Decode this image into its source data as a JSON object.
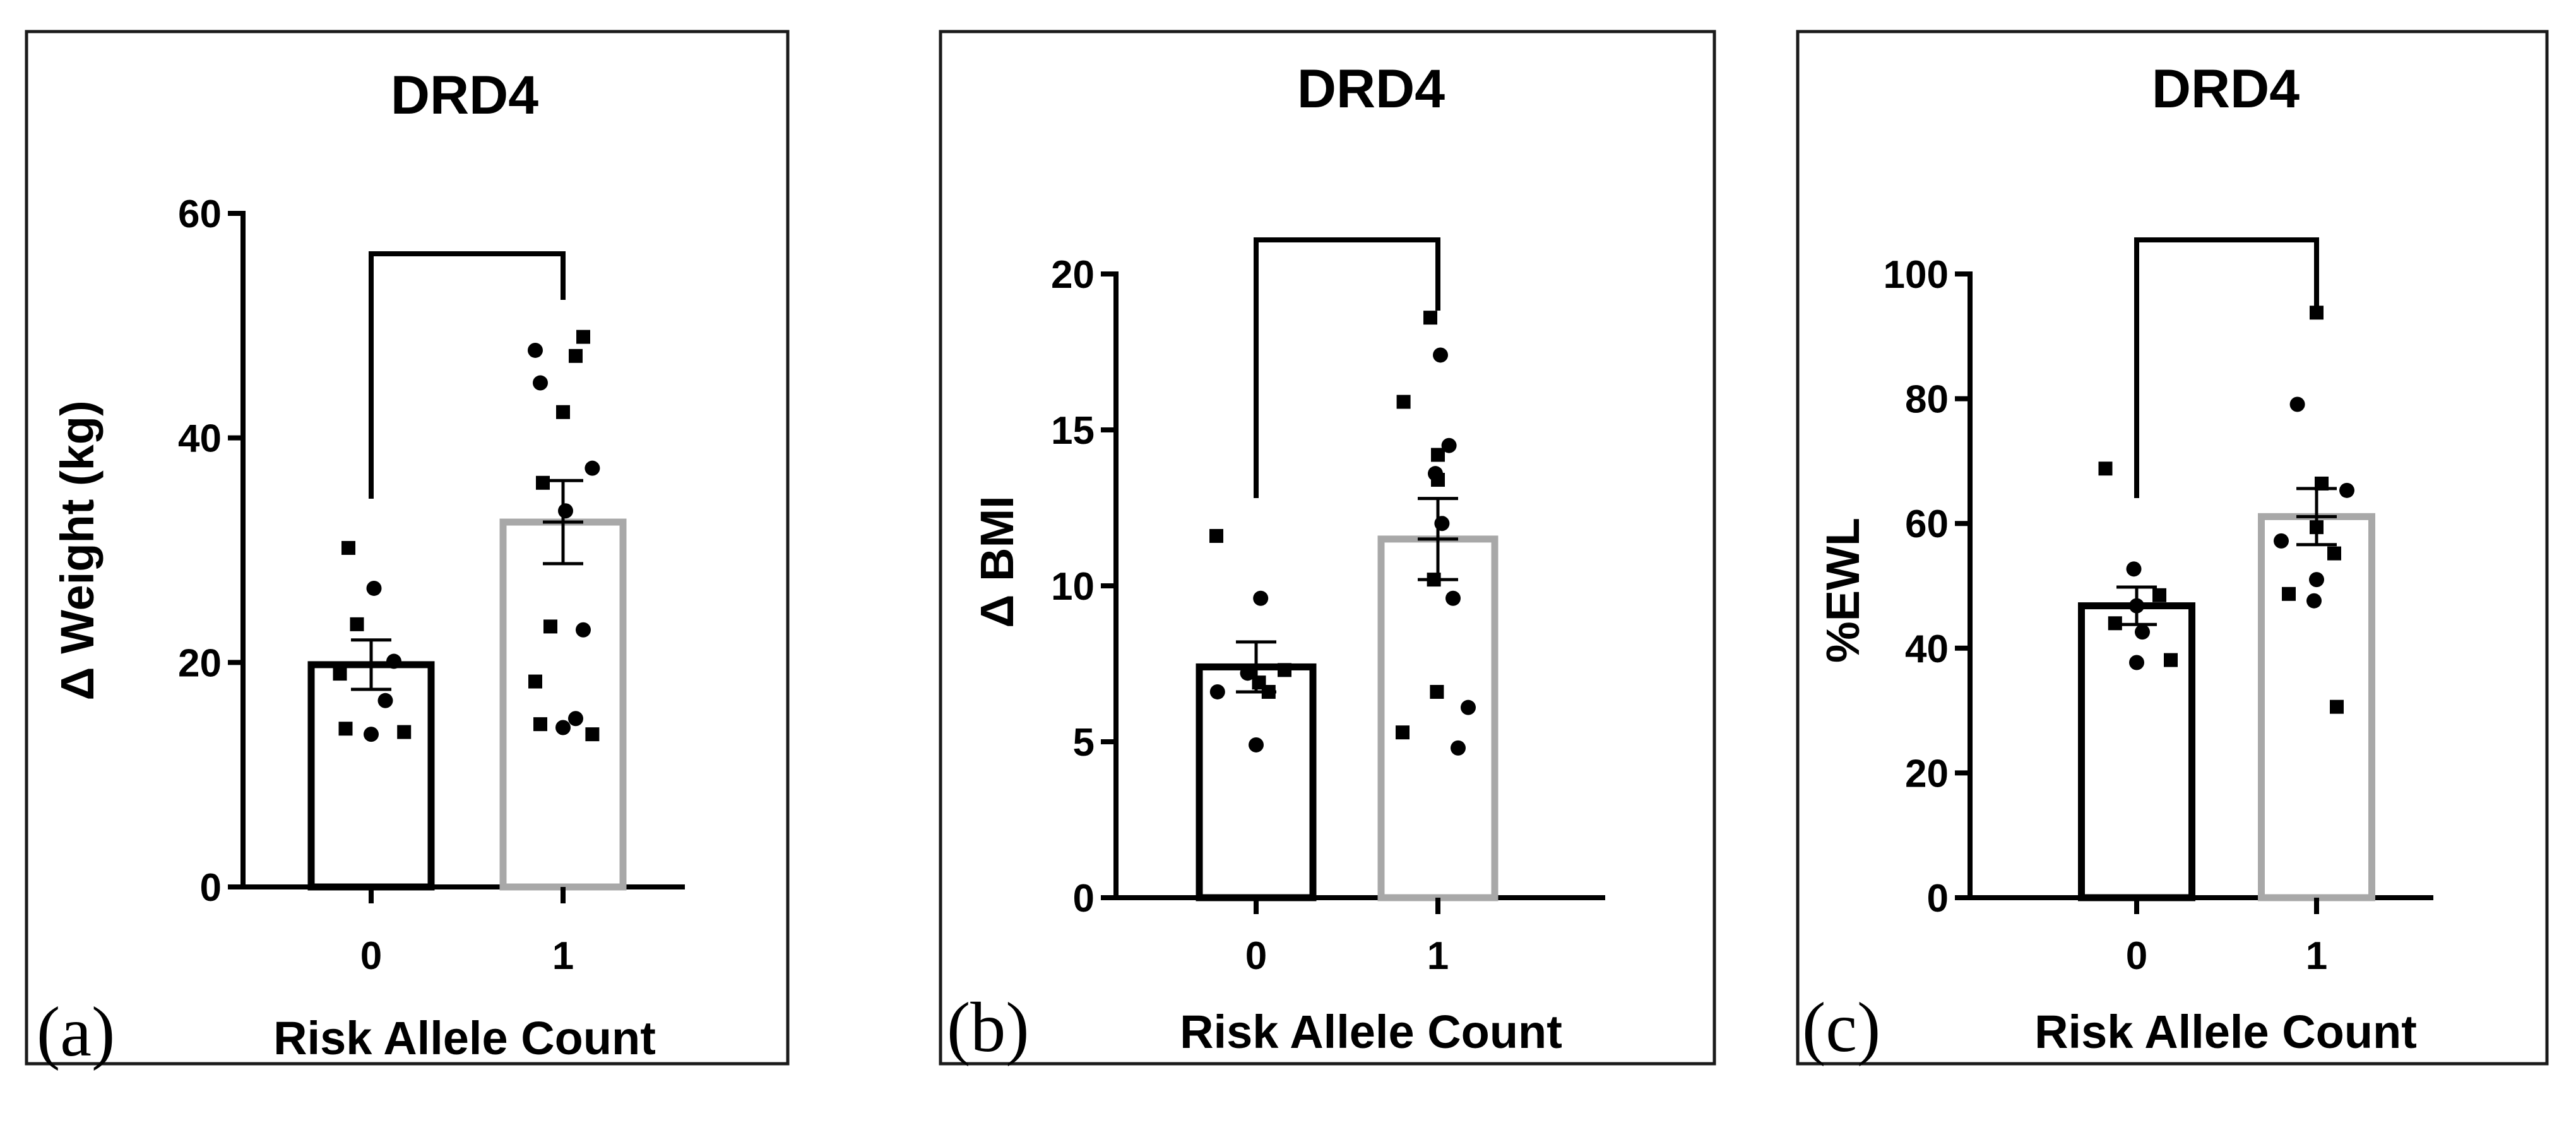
{
  "chart_data": [
    {
      "type": "bar",
      "panel_label": "(a)",
      "title": "DRD4",
      "xlabel": "Risk Allele Count",
      "ylabel": "Δ Weight (kg)",
      "ylim": [
        0,
        60
      ],
      "yticks": [
        "0",
        "20",
        "40",
        "60"
      ],
      "categories": [
        "0",
        "1"
      ],
      "bar_colors": [
        "#000000",
        "#a8a8a8"
      ],
      "values": [
        19.8,
        32.5
      ],
      "sem": [
        2.2,
        3.7
      ],
      "points": [
        [
          30.2,
          26.6,
          23.4,
          20.1,
          19.0,
          16.6,
          14.1,
          13.6,
          13.8
        ],
        [
          49.0,
          47.8,
          47.3,
          44.9,
          42.3,
          37.3,
          36.0,
          33.5,
          23.2,
          22.9,
          18.3,
          15.0,
          14.5,
          14.2,
          13.6
        ]
      ],
      "significance_bracket": true
    },
    {
      "type": "bar",
      "panel_label": "(b)",
      "title": "DRD4",
      "xlabel": "Risk Allele Count",
      "ylabel": "Δ BMI",
      "ylim": [
        0,
        20
      ],
      "yticks": [
        "0",
        "5",
        "10",
        "15",
        "20"
      ],
      "categories": [
        "0",
        "1"
      ],
      "bar_colors": [
        "#000000",
        "#a8a8a8"
      ],
      "values": [
        7.4,
        11.5
      ],
      "sem": [
        0.8,
        1.3
      ],
      "points": [
        [
          11.6,
          9.6,
          7.3,
          7.2,
          6.9,
          6.6,
          6.6,
          4.9
        ],
        [
          18.6,
          17.4,
          15.9,
          14.5,
          14.2,
          13.6,
          13.4,
          12.0,
          10.2,
          9.6,
          6.6,
          6.1,
          5.3,
          4.8
        ]
      ],
      "significance_bracket": true
    },
    {
      "type": "bar",
      "panel_label": "(c)",
      "title": "DRD4",
      "xlabel": "Risk Allele Count",
      "ylabel": "%EWL",
      "ylim": [
        0,
        100
      ],
      "yticks": [
        "0",
        "20",
        "40",
        "60",
        "80",
        "100"
      ],
      "categories": [
        "0",
        "1"
      ],
      "bar_colors": [
        "#000000",
        "#a8a8a8"
      ],
      "values": [
        46.8,
        61.1
      ],
      "sem": [
        3.0,
        4.5
      ],
      "points": [
        [
          68.8,
          52.7,
          48.5,
          46.8,
          44.0,
          42.6,
          38.1,
          37.7
        ],
        [
          93.8,
          79.1,
          66.4,
          65.3,
          59.4,
          57.2,
          55.2,
          51.0,
          48.7,
          47.6,
          30.6
        ]
      ],
      "significance_bracket": true
    }
  ]
}
